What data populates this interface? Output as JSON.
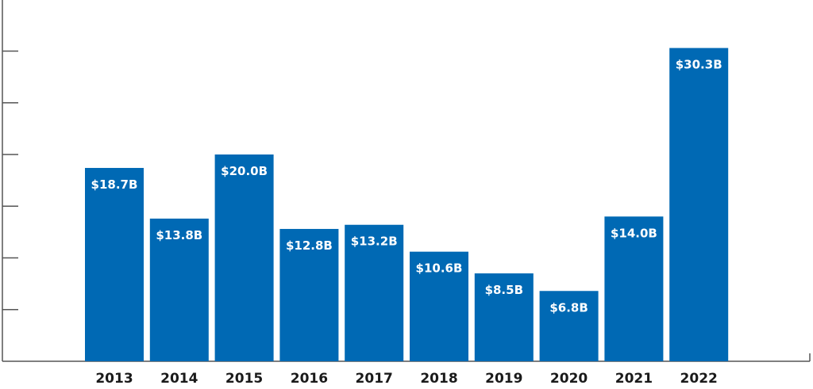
{
  "chart_data": {
    "type": "bar",
    "title": "",
    "xlabel": "",
    "ylabel": "",
    "categories": [
      "2013",
      "2014",
      "2015",
      "2016",
      "2017",
      "2018",
      "2019",
      "2020",
      "2021",
      "2022"
    ],
    "values": [
      18.7,
      13.8,
      20.0,
      12.8,
      13.2,
      10.6,
      8.5,
      6.8,
      14.0,
      30.3
    ],
    "data_labels": [
      "$18.7B",
      "$13.8B",
      "$20.0B",
      "$12.8B",
      "$13.2B",
      "$10.6B",
      "$8.5B",
      "$6.8B",
      "$14.0B",
      "$30.3B"
    ],
    "ylim": [
      0,
      35
    ],
    "y_gridlines": false,
    "y_tick_labels_shown": false,
    "legend": "none",
    "colors": {
      "bar": "#0069b4",
      "axis": "#555555",
      "label_inside": "#ffffff",
      "tick_text": "#1a1a1a"
    }
  }
}
